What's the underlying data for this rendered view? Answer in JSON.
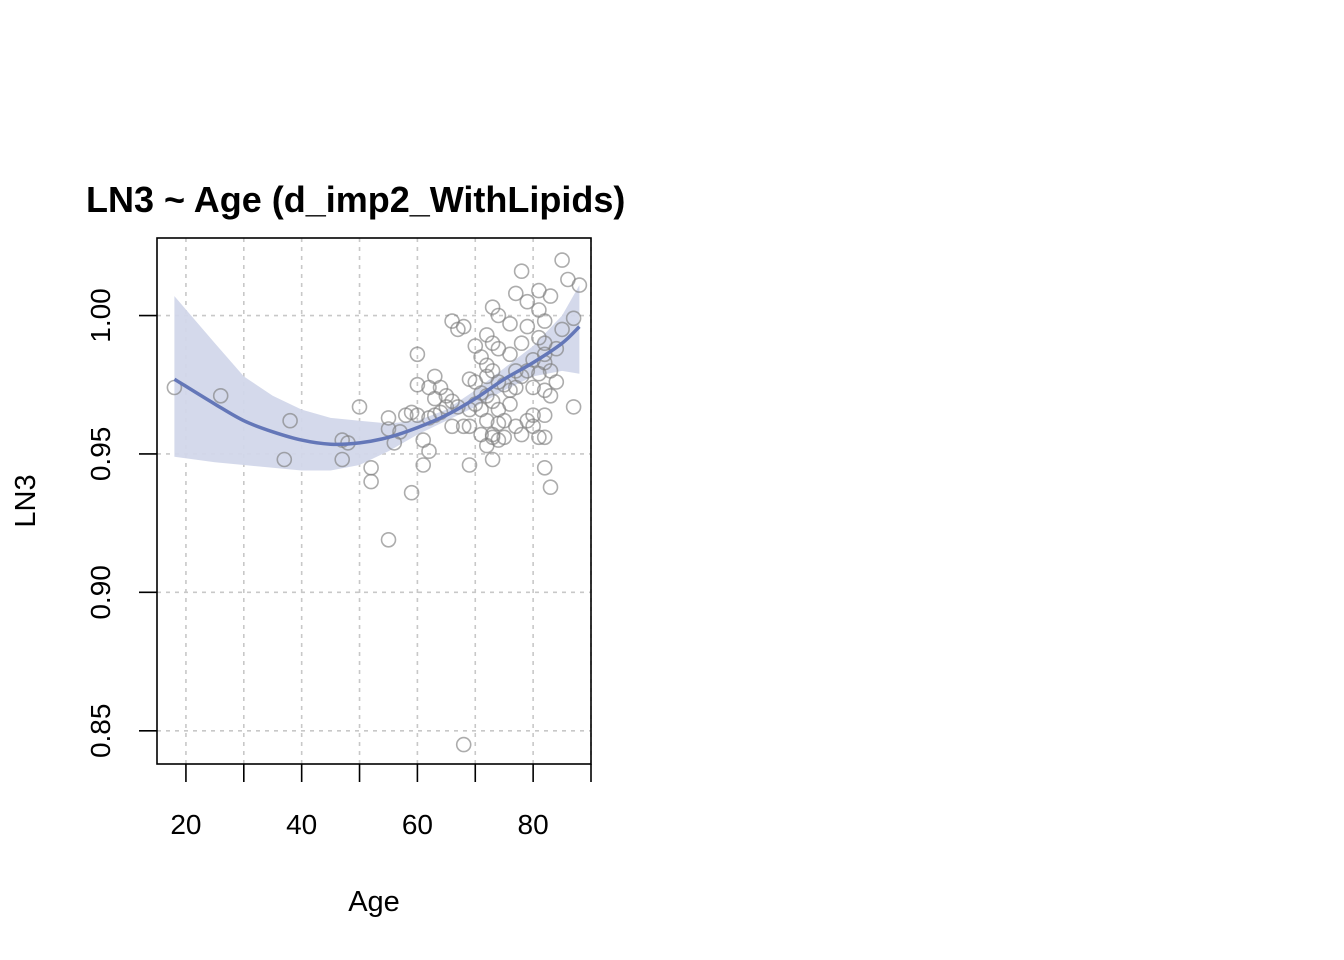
{
  "chart_data": {
    "type": "scatter",
    "title": "LN3 ~ Age (d_imp2_WithLipids)",
    "xlabel": "Age",
    "ylabel": "LN3",
    "xlim": [
      15,
      90
    ],
    "ylim": [
      0.838,
      1.028
    ],
    "x_ticks": [
      20,
      30,
      40,
      50,
      60,
      70,
      80,
      90
    ],
    "x_tick_labels": [
      "20",
      "40",
      "60",
      "80"
    ],
    "x_tick_label_values": [
      20,
      40,
      60,
      80
    ],
    "y_ticks": [
      0.85,
      0.9,
      0.95,
      1.0
    ],
    "y_tick_labels": [
      "0.85",
      "0.90",
      "0.95",
      "1.00"
    ],
    "grid": true,
    "colors": {
      "points": "#808080",
      "fit_line": "#6477b8",
      "ci_band": "#d2d7ea",
      "grid": "#c8c8c8"
    },
    "fit": {
      "x": [
        18,
        25,
        30,
        35,
        40,
        45,
        50,
        55,
        60,
        65,
        70,
        75,
        80,
        85,
        88
      ],
      "y": [
        0.977,
        0.968,
        0.962,
        0.958,
        0.955,
        0.9535,
        0.954,
        0.956,
        0.9595,
        0.964,
        0.97,
        0.977,
        0.983,
        0.99,
        0.996
      ],
      "lower": [
        0.949,
        0.947,
        0.946,
        0.945,
        0.944,
        0.944,
        0.946,
        0.951,
        0.957,
        0.962,
        0.967,
        0.973,
        0.978,
        0.98,
        0.979
      ],
      "upper": [
        1.007,
        0.99,
        0.978,
        0.971,
        0.966,
        0.963,
        0.962,
        0.961,
        0.962,
        0.966,
        0.973,
        0.981,
        0.989,
        1.0,
        1.011
      ]
    },
    "points": {
      "x": [
        18,
        26,
        37,
        38,
        47,
        47,
        48,
        50,
        52,
        52,
        55,
        55,
        55,
        56,
        57,
        58,
        59,
        59,
        60,
        60,
        60,
        61,
        61,
        62,
        62,
        62,
        63,
        63,
        63,
        64,
        64,
        65,
        65,
        66,
        66,
        66,
        67,
        67,
        68,
        68,
        69,
        69,
        69,
        69,
        70,
        70,
        70,
        71,
        71,
        71,
        71,
        72,
        72,
        72,
        72,
        72,
        72,
        73,
        73,
        73,
        73,
        73,
        73,
        74,
        74,
        74,
        74,
        74,
        74,
        75,
        75,
        75,
        76,
        76,
        76,
        76,
        77,
        77,
        77,
        77,
        78,
        78,
        78,
        78,
        79,
        79,
        79,
        79,
        80,
        80,
        80,
        80,
        81,
        81,
        81,
        81,
        81,
        82,
        82,
        82,
        82,
        82,
        82,
        82,
        82,
        83,
        83,
        83,
        83,
        84,
        84,
        85,
        85,
        86,
        87,
        87,
        88,
        68,
        73
      ],
      "y": [
        0.974,
        0.971,
        0.948,
        0.962,
        0.955,
        0.948,
        0.954,
        0.967,
        0.945,
        0.94,
        0.963,
        0.959,
        0.919,
        0.954,
        0.958,
        0.964,
        0.965,
        0.936,
        0.986,
        0.975,
        0.964,
        0.955,
        0.946,
        0.974,
        0.963,
        0.951,
        0.978,
        0.97,
        0.964,
        0.974,
        0.965,
        0.971,
        0.967,
        0.998,
        0.969,
        0.96,
        0.995,
        0.967,
        0.996,
        0.845,
        0.977,
        0.966,
        0.96,
        0.946,
        0.989,
        0.976,
        0.968,
        0.985,
        0.972,
        0.966,
        0.957,
        0.993,
        0.982,
        0.978,
        0.971,
        0.962,
        0.953,
        1.003,
        0.99,
        0.98,
        0.969,
        0.956,
        0.948,
        1.0,
        0.988,
        0.976,
        0.966,
        0.961,
        0.955,
        0.975,
        0.962,
        0.956,
        0.997,
        0.986,
        0.973,
        0.968,
        1.008,
        0.98,
        0.974,
        0.96,
        1.016,
        0.99,
        0.978,
        0.957,
        1.005,
        0.996,
        0.98,
        0.962,
        0.984,
        0.974,
        0.964,
        0.96,
        1.009,
        1.002,
        0.992,
        0.979,
        0.956,
        0.998,
        0.99,
        0.986,
        0.983,
        0.973,
        0.964,
        0.956,
        0.945,
        1.007,
        0.98,
        0.971,
        0.938,
        0.988,
        0.976,
        1.02,
        0.995,
        1.013,
        0.999,
        0.967,
        1.011,
        0.96,
        0.957
      ]
    }
  }
}
